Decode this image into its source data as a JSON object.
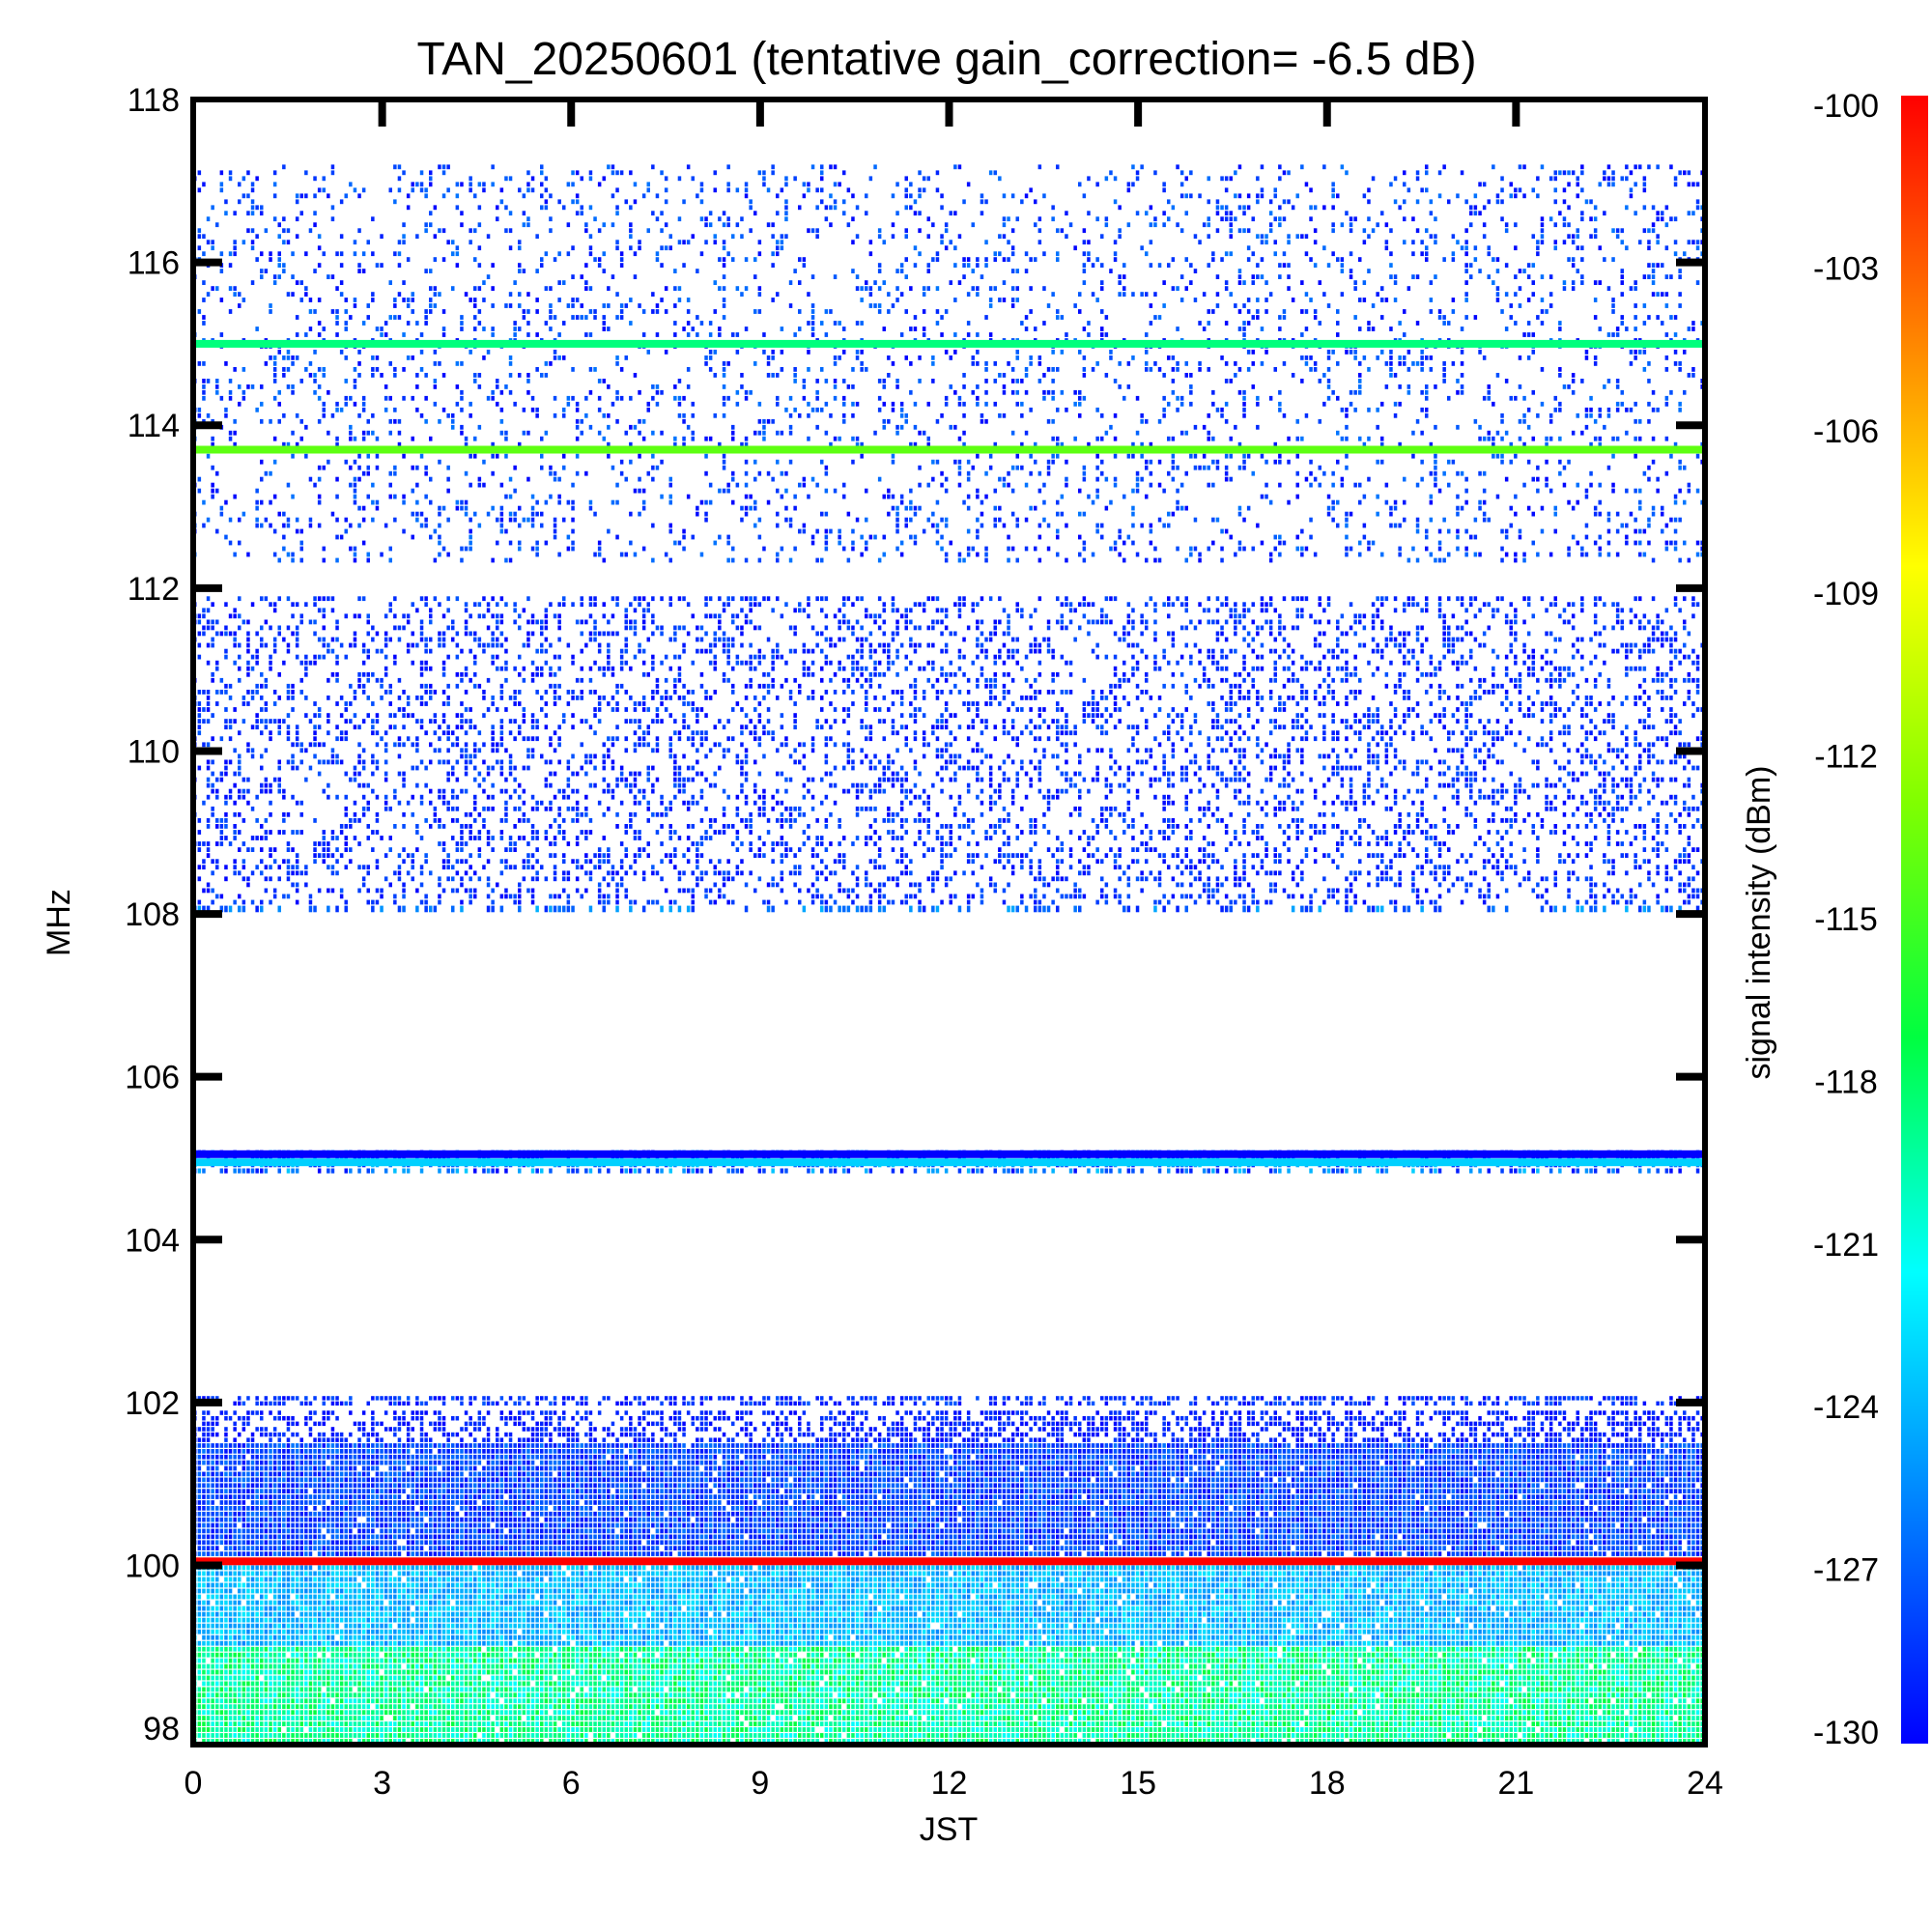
{
  "chart_data": {
    "type": "heatmap",
    "title": "TAN_20250601 (tentative gain_correction= -6.5 dB)",
    "xlabel": "JST",
    "ylabel": "MHz",
    "xlim": [
      0,
      24
    ],
    "ylim": [
      97.8,
      118
    ],
    "x_ticks": [
      "0",
      "3",
      "6",
      "9",
      "12",
      "15",
      "18",
      "21",
      "24"
    ],
    "y_ticks": [
      "98",
      "100",
      "102",
      "104",
      "106",
      "108",
      "110",
      "112",
      "114",
      "116",
      "118"
    ],
    "colorbar": {
      "label": "signal intensity (dBm)",
      "range": [
        -130,
        -100
      ],
      "ticks": [
        "-100",
        "-103",
        "-106",
        "-109",
        "-112",
        "-115",
        "-118",
        "-121",
        "-124",
        "-127",
        "-130"
      ],
      "colors": [
        "#0000ff",
        "#0080ff",
        "#00ffff",
        "#00ff40",
        "#80ff00",
        "#ffff00",
        "#ff8000",
        "#ff0000"
      ]
    },
    "bands": [
      {
        "from_mhz": 112.3,
        "to_mhz": 117.2,
        "density": 0.16,
        "dbm_min": -130,
        "dbm_max": -126
      },
      {
        "from_mhz": 108.1,
        "to_mhz": 111.9,
        "density": 0.3,
        "dbm_min": -130,
        "dbm_max": -127
      },
      {
        "from_mhz": 108.0,
        "to_mhz": 108.1,
        "density": 0.4,
        "dbm_min": -129,
        "dbm_max": -124
      },
      {
        "from_mhz": 104.8,
        "to_mhz": 105.1,
        "density": 0.55,
        "dbm_min": -130,
        "dbm_max": -123
      },
      {
        "from_mhz": 101.95,
        "to_mhz": 102.08,
        "density": 0.55,
        "dbm_min": -130,
        "dbm_max": -127
      },
      {
        "from_mhz": 101.5,
        "to_mhz": 101.9,
        "density": 0.55,
        "dbm_min": -130,
        "dbm_max": -128
      },
      {
        "from_mhz": 100.1,
        "to_mhz": 101.5,
        "density": 0.97,
        "dbm_min": -129.5,
        "dbm_max": -126
      },
      {
        "from_mhz": 99.0,
        "to_mhz": 100.0,
        "density": 0.97,
        "dbm_min": -125.5,
        "dbm_max": -122
      },
      {
        "from_mhz": 97.8,
        "to_mhz": 99.0,
        "density": 0.97,
        "dbm_min": -121.5,
        "dbm_max": -117
      }
    ],
    "lines": [
      {
        "mhz": 115.0,
        "dbm": -118.5
      },
      {
        "mhz": 113.7,
        "dbm": -114
      },
      {
        "mhz": 105.05,
        "dbm": -130
      },
      {
        "mhz": 104.95,
        "dbm": -123
      },
      {
        "mhz": 100.05,
        "dbm": -100
      }
    ]
  }
}
